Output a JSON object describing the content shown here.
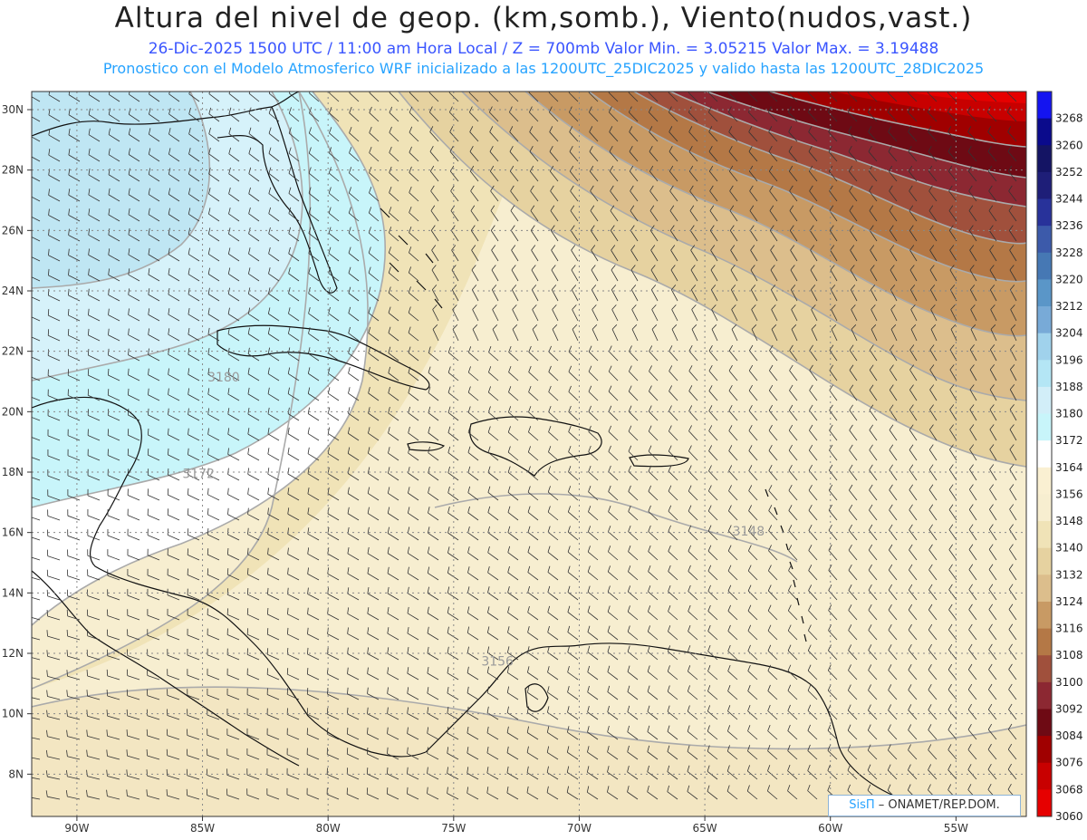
{
  "header": {
    "title": "Altura del nivel de geop. (km,somb.), Viento(nudos,vast.)",
    "subtitle": "26-Dic-2025  1500 UTC / 11:00 am Hora Local / Z = 700mb    Valor Min. = 3.05215   Valor Max. = 3.19488",
    "model_line": "Pronostico con el Modelo Atmosferico WRF inicializado a las 1200UTC_25DIC2025 y valido hasta las  1200UTC_28DIC2025"
  },
  "map": {
    "lon_range": [
      -91.8,
      -52.2
    ],
    "lat_range": [
      6.6,
      30.6
    ],
    "lon_ticks": [
      {
        "value": -90,
        "label": "90W"
      },
      {
        "value": -85,
        "label": "85W"
      },
      {
        "value": -80,
        "label": "80W"
      },
      {
        "value": -75,
        "label": "75W"
      },
      {
        "value": -70,
        "label": "70W"
      },
      {
        "value": -65,
        "label": "65W"
      },
      {
        "value": -60,
        "label": "60W"
      },
      {
        "value": -55,
        "label": "55W"
      }
    ],
    "lat_ticks": [
      {
        "value": 30,
        "label": "30N"
      },
      {
        "value": 28,
        "label": "28N"
      },
      {
        "value": 26,
        "label": "26N"
      },
      {
        "value": 24,
        "label": "24N"
      },
      {
        "value": 22,
        "label": "22N"
      },
      {
        "value": 20,
        "label": "20N"
      },
      {
        "value": 18,
        "label": "18N"
      },
      {
        "value": 16,
        "label": "16N"
      },
      {
        "value": 14,
        "label": "14N"
      },
      {
        "value": 12,
        "label": "12N"
      },
      {
        "value": 10,
        "label": "10N"
      },
      {
        "value": 8,
        "label": "8N"
      }
    ],
    "contour_labels": [
      {
        "text": "3180",
        "lon": -84.8,
        "lat": 21.0
      },
      {
        "text": "3172",
        "lon": -85.8,
        "lat": 17.8
      },
      {
        "text": "3148",
        "lon": -63.9,
        "lat": 15.9
      },
      {
        "text": "3156",
        "lon": -73.9,
        "lat": 11.6
      }
    ],
    "land_color": "#111111"
  },
  "colorbar": {
    "levels": [
      {
        "label": "3268",
        "color": "#1414f0"
      },
      {
        "label": "3260",
        "color": "#0a0a8c"
      },
      {
        "label": "3252",
        "color": "#141464"
      },
      {
        "label": "3244",
        "color": "#1e1e78"
      },
      {
        "label": "3236",
        "color": "#28329a"
      },
      {
        "label": "3228",
        "color": "#3c5aaa"
      },
      {
        "label": "3220",
        "color": "#4678b4"
      },
      {
        "label": "3212",
        "color": "#5a96c8"
      },
      {
        "label": "3204",
        "color": "#78aad7"
      },
      {
        "label": "3196",
        "color": "#a0d2ec"
      },
      {
        "label": "3188",
        "color": "#b4e6f5"
      },
      {
        "label": "3180",
        "color": "#d2eef8"
      },
      {
        "label": "3172",
        "color": "#c8f5fa"
      },
      {
        "label": "3164",
        "color": "#ffffff"
      },
      {
        "label": "3156",
        "color": "#faf0d2"
      },
      {
        "label": "3148",
        "color": "#f7eed0"
      },
      {
        "label": "3140",
        "color": "#f0e3b7"
      },
      {
        "label": "3132",
        "color": "#e6d2a0"
      },
      {
        "label": "3124",
        "color": "#dcbe8c"
      },
      {
        "label": "3116",
        "color": "#c89a64"
      },
      {
        "label": "3108",
        "color": "#b47846"
      },
      {
        "label": "3100",
        "color": "#a0503c"
      },
      {
        "label": "3092",
        "color": "#8c2832"
      },
      {
        "label": "3084",
        "color": "#6e0a14"
      },
      {
        "label": "3076",
        "color": "#a00000"
      },
      {
        "label": "3068",
        "color": "#c80000"
      },
      {
        "label": "3060",
        "color": "#e60000"
      }
    ]
  },
  "credit": {
    "brand": "SisΠ",
    "text": "– ONAMET/REP.DOM."
  }
}
